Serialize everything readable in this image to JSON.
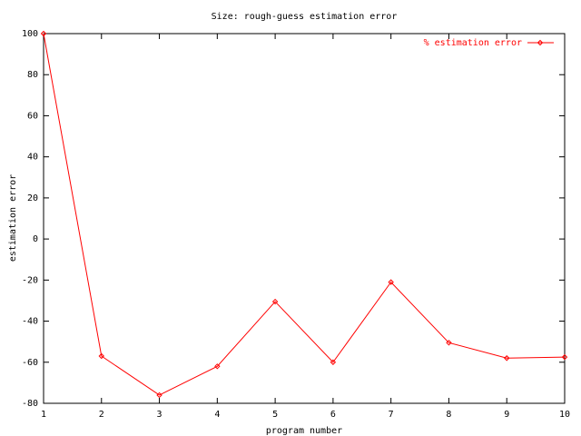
{
  "chart_data": {
    "type": "line",
    "title": "Size: rough-guess estimation error",
    "x_label": "program number",
    "y_label": "estimation error",
    "x": [
      1,
      2,
      3,
      4,
      5,
      6,
      7,
      8,
      9,
      10
    ],
    "series": [
      {
        "name": "% estimation error",
        "color": "#ff0000",
        "values": [
          100,
          -57,
          -76,
          -62,
          -30.5,
          -60,
          -21,
          -50.5,
          -58,
          -57.5
        ]
      }
    ],
    "xlim": [
      1,
      10
    ],
    "xticks": [
      1,
      2,
      3,
      4,
      5,
      6,
      7,
      8,
      9,
      10
    ],
    "ylim": [
      -80,
      100
    ],
    "yticks": [
      -80,
      -60,
      -40,
      -20,
      0,
      20,
      40,
      60,
      80,
      100
    ],
    "grid": false,
    "legend": "top-right"
  }
}
